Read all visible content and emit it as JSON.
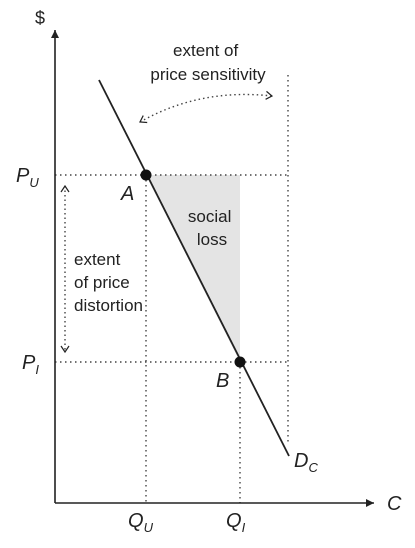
{
  "axes": {
    "y_label": "$",
    "x_label": "C"
  },
  "price_labels": {
    "upper": {
      "main": "P",
      "sub": "U"
    },
    "lower": {
      "main": "P",
      "sub": "I"
    }
  },
  "quantity_labels": {
    "upper": {
      "main": "Q",
      "sub": "U"
    },
    "lower": {
      "main": "Q",
      "sub": "I"
    }
  },
  "points": {
    "a": "A",
    "b": "B"
  },
  "demand_curve": {
    "main": "D",
    "sub": "C"
  },
  "annotations": {
    "price_sensitivity": [
      "extent of",
      "price sensitivity"
    ],
    "price_distortion": [
      "extent",
      "of price",
      "distortion"
    ],
    "social_loss": [
      "social",
      "loss"
    ]
  },
  "colors": {
    "line": "#222222",
    "shade": "#e4e4e4",
    "text": "#222222"
  }
}
